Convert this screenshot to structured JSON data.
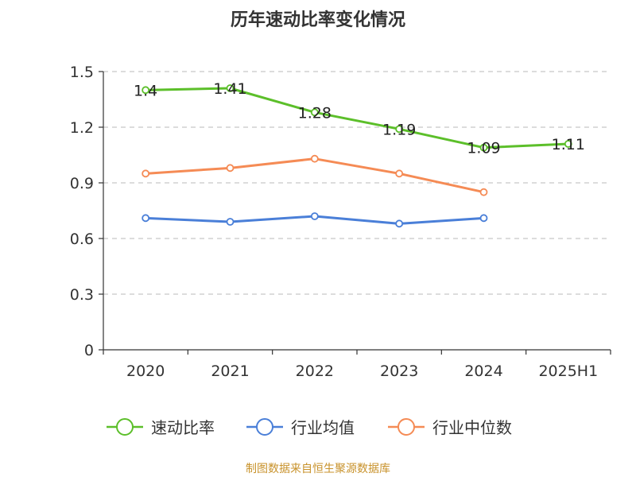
{
  "chart_data": {
    "type": "line",
    "title": "历年速动比率变化情况",
    "categories": [
      "2020",
      "2021",
      "2022",
      "2023",
      "2024",
      "2025H1"
    ],
    "ylim": [
      0,
      1.5
    ],
    "yticks": [
      "0",
      "0.3",
      "0.6",
      "0.9",
      "1.2",
      "1.5"
    ],
    "grid": true,
    "legend_position": "bottom",
    "series": [
      {
        "name": "速动比率",
        "color": "#5cbf2a",
        "values": [
          1.4,
          1.41,
          1.28,
          1.19,
          1.09,
          1.11
        ],
        "labels": [
          "1.4",
          "1.41",
          "1.28",
          "1.19",
          "1.09",
          "1.11"
        ],
        "show_labels": true
      },
      {
        "name": "行业均值",
        "color": "#4a7fd8",
        "values": [
          0.71,
          0.69,
          0.72,
          0.68,
          0.71,
          null
        ],
        "show_labels": false
      },
      {
        "name": "行业中位数",
        "color": "#f58b55",
        "values": [
          0.95,
          0.98,
          1.03,
          0.95,
          0.85,
          null
        ],
        "show_labels": false
      }
    ],
    "source": "制图数据来自恒生聚源数据库"
  }
}
